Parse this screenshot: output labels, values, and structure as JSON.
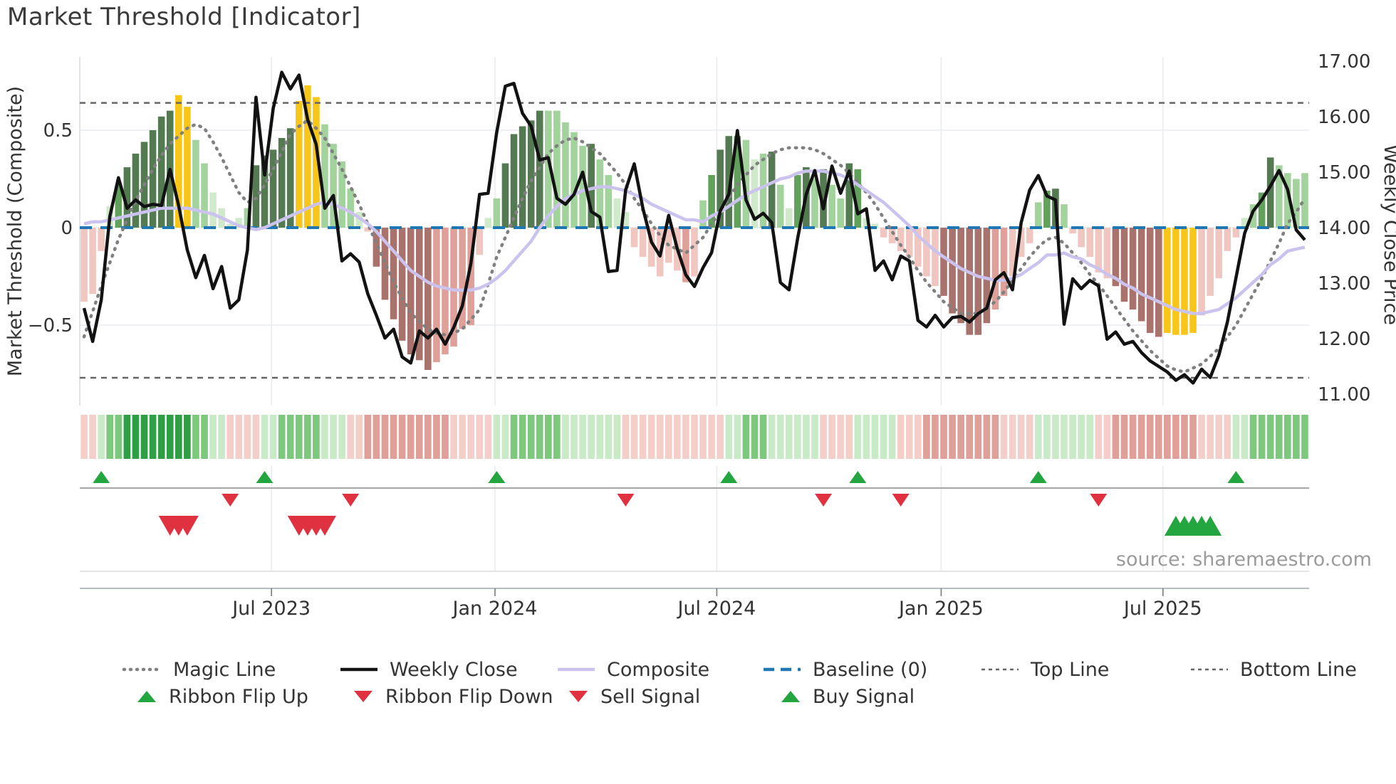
{
  "title": "Market Threshold [Indicator]",
  "source_note": "source: sharemaestro.com",
  "axes": {
    "left": {
      "label": "Market Threshold (Composite)",
      "ticks": [
        {
          "label": "0.5",
          "value": 0.5
        },
        {
          "label": "0",
          "value": 0
        },
        {
          "label": "−0.5",
          "value": -0.5
        }
      ]
    },
    "right": {
      "label": "Weekly Close Price",
      "ticks": [
        {
          "label": "17.00",
          "value": 17
        },
        {
          "label": "16.00",
          "value": 16
        },
        {
          "label": "15.00",
          "value": 15
        },
        {
          "label": "14.00",
          "value": 14
        },
        {
          "label": "13.00",
          "value": 13
        },
        {
          "label": "12.00",
          "value": 12
        },
        {
          "label": "11.00",
          "value": 11
        }
      ]
    },
    "x": {
      "ticks": [
        {
          "label": "Jul 2023",
          "week": 21.8
        },
        {
          "label": "Jan 2024",
          "week": 47.8
        },
        {
          "label": "Jul 2024",
          "week": 73.6
        },
        {
          "label": "Jan 2025",
          "week": 99.7
        },
        {
          "label": "Jul 2025",
          "week": 125.5
        }
      ]
    }
  },
  "colors": {
    "background": "#ffffff",
    "title_text": "#3a3a3a",
    "axis_text": "#333333",
    "grid": "#e9ecef",
    "spine": "#d9dde2",
    "bar_dark_green": "#547a51",
    "bar_mid_green": "#61a15c",
    "bar_light_green": "#a3d39c",
    "bar_pale_green": "#cfe9ca",
    "bar_yellow": "#f8c619",
    "bar_light_pink": "#f0c6c0",
    "bar_mid_pink": "#dfa099",
    "bar_brown": "#a8736c",
    "line_close": "#121212",
    "line_composite": "#cbc3ee",
    "line_magic": "#808080",
    "line_baseline": "#1f77b4",
    "line_topbottom": "#666666",
    "ribbon_green_1": "#c9eac6",
    "ribbon_green_2": "#7cc87c",
    "ribbon_green_3": "#2f9e44",
    "ribbon_red_1": "#f4cfca",
    "ribbon_red_2": "#dfa099",
    "marker_green": "#23a63f",
    "marker_red": "#e03140",
    "signal_line": "#a5a5a5",
    "axis_line": "#b7bcc2",
    "minor_line": "#dcdcdc",
    "source_text": "#9b9b9b"
  },
  "legend": {
    "row1": [
      {
        "label": "Magic Line",
        "swatch": {
          "type": "line",
          "color": "#808080",
          "width": 4.5,
          "dash": "1 8",
          "cap": "round"
        }
      },
      {
        "label": "Weekly Close",
        "swatch": {
          "type": "line",
          "color": "#121212",
          "width": 4.5,
          "dash": "",
          "cap": "butt"
        }
      },
      {
        "label": "Composite",
        "swatch": {
          "type": "line",
          "color": "#cbc3ee",
          "width": 4.5,
          "dash": "",
          "cap": "butt"
        }
      },
      {
        "label": "Baseline (0)",
        "swatch": {
          "type": "line",
          "color": "#1f77b4",
          "width": 4.5,
          "dash": "15 9",
          "cap": "butt"
        }
      },
      {
        "label": "Top Line",
        "swatch": {
          "type": "line",
          "color": "#666666",
          "width": 2.5,
          "dash": "5 5",
          "cap": "butt"
        }
      },
      {
        "label": "Bottom Line",
        "swatch": {
          "type": "line",
          "color": "#666666",
          "width": 2.5,
          "dash": "5 5",
          "cap": "butt"
        }
      }
    ],
    "row2": [
      {
        "label": "Ribbon Flip Up",
        "swatch": {
          "type": "triangle-up",
          "color": "#23a63f"
        }
      },
      {
        "label": "Ribbon Flip Down",
        "swatch": {
          "type": "triangle-down",
          "color": "#e03140"
        }
      },
      {
        "label": "Sell Signal",
        "swatch": {
          "type": "triangle-down",
          "color": "#e03140"
        }
      },
      {
        "label": "Buy Signal",
        "swatch": {
          "type": "triangle-up",
          "color": "#23a63f"
        }
      }
    ]
  },
  "chart_data": {
    "type": "combo (bar histogram + 3 lines on dual axis + color ribbon + signal markers)",
    "weeks": 143,
    "x_range": "weekly data, approx Feb 2023 – Oct 2025",
    "left_axis_label": "Market Threshold (Composite)",
    "right_axis_label": "Weekly Close Price",
    "left_ylim": [
      -0.88,
      0.88
    ],
    "right_ylim": [
      10.92,
      17.08
    ],
    "grid": "horizontal at 0.5 / 0 / -0.5, vertical at half-year ticks",
    "legend_position": "bottom, two rows",
    "reference_lines": {
      "baseline": 0,
      "top_line": 0.64,
      "bottom_line": -0.77
    },
    "bars": {
      "name": "Market Threshold (Composite) histogram",
      "values": [
        -0.38,
        -0.34,
        -0.12,
        0.11,
        0.22,
        0.31,
        0.38,
        0.44,
        0.5,
        0.57,
        0.6,
        0.68,
        0.62,
        0.45,
        0.33,
        0.18,
        0.1,
        0.02,
        0.05,
        0.1,
        0.32,
        0.37,
        0.4,
        0.46,
        0.51,
        0.65,
        0.73,
        0.67,
        0.53,
        0.43,
        0.34,
        0.2,
        0.08,
        -0.02,
        -0.2,
        -0.37,
        -0.47,
        -0.58,
        -0.65,
        -0.68,
        -0.73,
        -0.69,
        -0.65,
        -0.61,
        -0.52,
        -0.5,
        -0.14,
        0.05,
        0.15,
        0.33,
        0.48,
        0.52,
        0.55,
        0.6,
        0.6,
        0.6,
        0.54,
        0.49,
        0.42,
        0.43,
        0.35,
        0.27,
        0.15,
        0.08,
        -0.1,
        -0.15,
        -0.2,
        -0.25,
        -0.18,
        -0.22,
        -0.28,
        -0.25,
        0.14,
        0.27,
        0.4,
        0.47,
        0.47,
        0.45,
        0.35,
        0.38,
        0.39,
        0.22,
        0.1,
        0.27,
        0.31,
        0.25,
        0.3,
        0.22,
        0.15,
        0.33,
        0.3,
        0.05,
        0.02,
        -0.05,
        -0.08,
        -0.12,
        -0.15,
        -0.2,
        -0.25,
        -0.3,
        -0.35,
        -0.44,
        -0.49,
        -0.55,
        -0.55,
        -0.49,
        -0.42,
        -0.35,
        -0.25,
        -0.15,
        -0.08,
        0.13,
        0.19,
        0.2,
        0.12,
        -0.03,
        -0.1,
        -0.15,
        -0.23,
        -0.26,
        -0.3,
        -0.38,
        -0.42,
        -0.48,
        -0.54,
        -0.56,
        -0.54,
        -0.55,
        -0.55,
        -0.54,
        -0.45,
        -0.35,
        -0.26,
        -0.12,
        -0.05,
        0.05,
        0.12,
        0.18,
        0.36,
        0.32,
        0.28,
        0.25,
        0.28
      ],
      "colors": [
        "lp",
        "lp",
        "lp",
        "pg",
        "mg",
        "dg",
        "dg",
        "dg",
        "dg",
        "dg",
        "dg",
        "yl",
        "yl",
        "lg",
        "lg",
        "pg",
        "pg",
        "pg",
        "pg",
        "lg",
        "dg",
        "dg",
        "dg",
        "dg",
        "dg",
        "yl",
        "yl",
        "yl",
        "lg",
        "lg",
        "lg",
        "lg",
        "pg",
        "lp",
        "dr",
        "dr",
        "dr",
        "dr",
        "dr",
        "dr",
        "dr",
        "mp",
        "mp",
        "mp",
        "mp",
        "mp",
        "lp",
        "pg",
        "lg",
        "dg",
        "dg",
        "dg",
        "dg",
        "dg",
        "lg",
        "lg",
        "lg",
        "lg",
        "lg",
        "dg",
        "lg",
        "lg",
        "pg",
        "pg",
        "lp",
        "lp",
        "lp",
        "lp",
        "lp",
        "lp",
        "mp",
        "lp",
        "lg",
        "mg",
        "dg",
        "dg",
        "mg",
        "lg",
        "pg",
        "lg",
        "dg",
        "lg",
        "pg",
        "mg",
        "dg",
        "lg",
        "dg",
        "lg",
        "lg",
        "dg",
        "mg",
        "pg",
        "pg",
        "lp",
        "lp",
        "lp",
        "lp",
        "lp",
        "lp",
        "lp",
        "dr",
        "dr",
        "dr",
        "dr",
        "dr",
        "dr",
        "mp",
        "mp",
        "lp",
        "lp",
        "lp",
        "lg",
        "mg",
        "dg",
        "lg",
        "lp",
        "lp",
        "lp",
        "lp",
        "lp",
        "dr",
        "dr",
        "dr",
        "dr",
        "dr",
        "dr",
        "yl",
        "yl",
        "yl",
        "yl",
        "lp",
        "lp",
        "lp",
        "lp",
        "lp",
        "pg",
        "lg",
        "mg",
        "dg",
        "lg",
        "lg",
        "lg",
        "lg"
      ]
    },
    "series": [
      {
        "name": "Weekly Close",
        "axis": "right",
        "values": [
          12.55,
          11.95,
          12.7,
          14.2,
          14.9,
          14.35,
          14.5,
          14.38,
          14.42,
          14.4,
          15.05,
          14.4,
          13.6,
          13.1,
          13.5,
          12.9,
          13.3,
          12.55,
          12.7,
          13.6,
          16.35,
          14.95,
          16.15,
          16.8,
          16.5,
          16.75,
          15.95,
          15.5,
          14.35,
          14.58,
          13.4,
          13.53,
          13.38,
          12.81,
          12.42,
          12.01,
          12.17,
          11.67,
          11.56,
          12.14,
          12.01,
          12.17,
          11.9,
          12.2,
          12.59,
          13.36,
          14.6,
          14.62,
          15.72,
          16.55,
          16.6,
          16.06,
          15.83,
          15.22,
          15.26,
          14.53,
          14.42,
          14.6,
          15.0,
          14.29,
          14.19,
          13.21,
          13.23,
          14.68,
          15.15,
          14.35,
          13.74,
          13.49,
          14.22,
          13.62,
          13.15,
          12.94,
          13.28,
          13.55,
          14.3,
          14.6,
          15.75,
          14.5,
          14.15,
          14.26,
          14.09,
          13.01,
          12.88,
          13.8,
          14.6,
          15.03,
          14.34,
          15.11,
          14.62,
          15.02,
          14.25,
          14.34,
          13.23,
          13.4,
          13.06,
          13.49,
          13.4,
          12.33,
          12.21,
          12.42,
          12.21,
          12.38,
          12.4,
          12.3,
          12.45,
          12.55,
          13.06,
          13.19,
          12.88,
          14.09,
          14.68,
          14.94,
          14.57,
          14.5,
          12.26,
          13.08,
          12.9,
          13.05,
          12.95,
          11.99,
          12.12,
          11.9,
          11.95,
          11.75,
          11.6,
          11.5,
          11.4,
          11.25,
          11.35,
          11.2,
          11.45,
          11.3,
          11.7,
          12.3,
          13.1,
          13.9,
          14.3,
          14.5,
          14.75,
          15.03,
          14.69,
          13.96,
          13.78
        ]
      },
      {
        "name": "Composite",
        "axis": "left",
        "values": [
          0.02,
          0.03,
          0.03,
          0.04,
          0.05,
          0.06,
          0.07,
          0.08,
          0.09,
          0.1,
          0.1,
          0.1,
          0.1,
          0.09,
          0.08,
          0.07,
          0.05,
          0.03,
          0.01,
          0.0,
          -0.01,
          0.0,
          0.02,
          0.04,
          0.06,
          0.08,
          0.1,
          0.12,
          0.13,
          0.12,
          0.1,
          0.08,
          0.05,
          0.02,
          -0.02,
          -0.07,
          -0.12,
          -0.17,
          -0.22,
          -0.25,
          -0.28,
          -0.3,
          -0.31,
          -0.32,
          -0.32,
          -0.32,
          -0.31,
          -0.29,
          -0.26,
          -0.22,
          -0.17,
          -0.12,
          -0.07,
          0.0,
          0.06,
          0.11,
          0.15,
          0.17,
          0.19,
          0.2,
          0.21,
          0.21,
          0.2,
          0.19,
          0.17,
          0.15,
          0.12,
          0.1,
          0.08,
          0.06,
          0.04,
          0.04,
          0.03,
          0.06,
          0.08,
          0.11,
          0.14,
          0.17,
          0.19,
          0.21,
          0.23,
          0.25,
          0.26,
          0.28,
          0.29,
          0.29,
          0.29,
          0.28,
          0.27,
          0.25,
          0.22,
          0.19,
          0.16,
          0.13,
          0.09,
          0.05,
          0.01,
          -0.04,
          -0.08,
          -0.12,
          -0.15,
          -0.18,
          -0.21,
          -0.23,
          -0.25,
          -0.26,
          -0.27,
          -0.27,
          -0.26,
          -0.24,
          -0.21,
          -0.18,
          -0.14,
          -0.14,
          -0.13,
          -0.15,
          -0.16,
          -0.19,
          -0.21,
          -0.24,
          -0.26,
          -0.29,
          -0.31,
          -0.34,
          -0.36,
          -0.38,
          -0.4,
          -0.42,
          -0.43,
          -0.44,
          -0.44,
          -0.43,
          -0.42,
          -0.39,
          -0.36,
          -0.32,
          -0.28,
          -0.24,
          -0.19,
          -0.16,
          -0.12,
          -0.11,
          -0.1
        ]
      },
      {
        "name": "Magic Line",
        "axis": "left",
        "values": [
          -0.56,
          -0.43,
          -0.3,
          -0.18,
          -0.06,
          0.04,
          0.14,
          0.22,
          0.3,
          0.37,
          0.43,
          0.47,
          0.51,
          0.53,
          0.51,
          0.44,
          0.36,
          0.27,
          0.18,
          0.13,
          0.15,
          0.22,
          0.3,
          0.39,
          0.48,
          0.52,
          0.55,
          0.51,
          0.46,
          0.38,
          0.3,
          0.21,
          0.12,
          0.02,
          -0.08,
          -0.18,
          -0.28,
          -0.36,
          -0.44,
          -0.48,
          -0.52,
          -0.54,
          -0.55,
          -0.54,
          -0.52,
          -0.47,
          -0.42,
          -0.29,
          -0.15,
          -0.05,
          0.05,
          0.15,
          0.24,
          0.31,
          0.38,
          0.42,
          0.45,
          0.46,
          0.44,
          0.41,
          0.38,
          0.33,
          0.28,
          0.22,
          0.15,
          0.09,
          0.02,
          -0.04,
          -0.09,
          -0.11,
          -0.13,
          -0.09,
          -0.05,
          0.02,
          0.08,
          0.15,
          0.22,
          0.27,
          0.32,
          0.35,
          0.38,
          0.4,
          0.41,
          0.41,
          0.41,
          0.4,
          0.38,
          0.35,
          0.32,
          0.28,
          0.23,
          0.18,
          0.12,
          0.05,
          -0.02,
          -0.09,
          -0.15,
          -0.22,
          -0.28,
          -0.33,
          -0.38,
          -0.41,
          -0.44,
          -0.44,
          -0.44,
          -0.41,
          -0.38,
          -0.33,
          -0.27,
          -0.21,
          -0.15,
          -0.1,
          -0.06,
          -0.05,
          -0.08,
          -0.13,
          -0.18,
          -0.24,
          -0.29,
          -0.35,
          -0.41,
          -0.47,
          -0.53,
          -0.58,
          -0.63,
          -0.67,
          -0.71,
          -0.73,
          -0.74,
          -0.72,
          -0.7,
          -0.66,
          -0.62,
          -0.56,
          -0.5,
          -0.42,
          -0.34,
          -0.26,
          -0.17,
          -0.08,
          0.02,
          0.08,
          0.15
        ]
      }
    ],
    "ribbon": {
      "description": "trend ribbon strip below chart, green=up / red=down, intensity 1-3",
      "values": [
        -1,
        -1,
        1,
        2,
        2,
        3,
        3,
        3,
        3,
        3,
        3,
        3,
        3,
        2,
        2,
        1,
        1,
        -1,
        -1,
        -1,
        -1,
        1,
        1,
        2,
        2,
        2,
        2,
        2,
        1,
        1,
        1,
        -1,
        -1,
        -2,
        -2,
        -2,
        -2,
        -2,
        -2,
        -2,
        -2,
        -2,
        -2,
        -1,
        -1,
        -1,
        -1,
        -1,
        1,
        1,
        2,
        2,
        2,
        2,
        2,
        2,
        1,
        1,
        1,
        1,
        1,
        1,
        1,
        -1,
        -1,
        -1,
        -1,
        -1,
        -1,
        -1,
        -1,
        -1,
        -1,
        -1,
        -1,
        1,
        1,
        2,
        2,
        2,
        1,
        1,
        1,
        1,
        1,
        1,
        -1,
        -1,
        -1,
        -1,
        1,
        1,
        1,
        1,
        1,
        -1,
        -1,
        -1,
        -2,
        -2,
        -2,
        -2,
        -2,
        -2,
        -2,
        -2,
        -2,
        -1,
        -1,
        -1,
        -1,
        1,
        1,
        1,
        1,
        1,
        1,
        1,
        -1,
        -1,
        -2,
        -2,
        -2,
        -2,
        -2,
        -2,
        -2,
        -2,
        -2,
        -2,
        -1,
        -1,
        -1,
        -1,
        1,
        1,
        2,
        2,
        2,
        2,
        2,
        2,
        2
      ]
    },
    "signals": {
      "ribbon_flip_up_weeks": [
        2,
        21,
        48,
        75,
        90,
        111,
        134
      ],
      "ribbon_flip_down_weeks": [
        17,
        31,
        63,
        86,
        95,
        118
      ],
      "sell_signal_weeks": [
        10,
        11,
        12,
        25,
        26,
        27,
        28
      ],
      "buy_signal_weeks": [
        127,
        128,
        129,
        130,
        131
      ]
    }
  }
}
